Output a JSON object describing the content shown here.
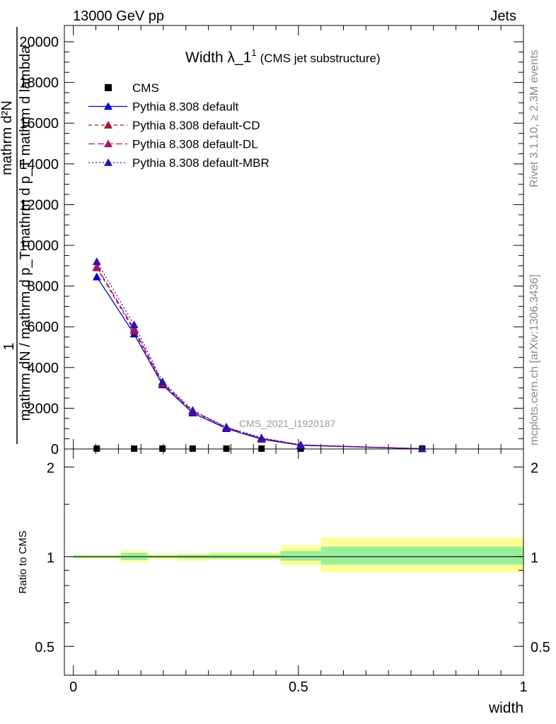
{
  "header": {
    "left": "13000 GeV pp",
    "right": "Jets"
  },
  "side": {
    "rivet": "Rivet 3.1.10, ≥ 2.3M events",
    "mcplots": "mcplots.cern.ch [arXiv:1306.3436]"
  },
  "chart_data": [
    {
      "type": "line",
      "title": "Width λ_1",
      "title_sup": "1",
      "title_suffix": "(CMS jet substructure)",
      "ylabel_main": "1",
      "ylabel_num": "mathrm d²N",
      "ylabel_den": "mathrm dN / mathrm d p_T mathrm d p_T mathrm d lambda",
      "watermark": "CMS_2021_I1920187",
      "xlim": [
        -0.02,
        1.0
      ],
      "ylim": [
        0,
        20800
      ],
      "yticks": [
        0,
        2000,
        4000,
        6000,
        8000,
        10000,
        12000,
        14000,
        16000,
        18000,
        20000
      ],
      "ytick_labels": [
        "0",
        "2000",
        "4000",
        "6000",
        "8000",
        "10000",
        "12000",
        "14000",
        "16000",
        "18000",
        "20000"
      ],
      "legend_position": "top-left",
      "x": [
        0.052,
        0.135,
        0.198,
        0.265,
        0.34,
        0.418,
        0.505,
        0.775
      ],
      "series": [
        {
          "name": "CMS",
          "color": "#000000",
          "marker": "square",
          "dash": "none",
          "values": [
            0,
            0,
            0,
            0,
            0,
            0,
            0,
            0
          ]
        },
        {
          "name": "Pythia 8.308 default",
          "color": "#0000cc",
          "marker": "triangle",
          "dash": "solid",
          "values": [
            8450,
            5650,
            3150,
            1770,
            1000,
            480,
            180,
            10
          ]
        },
        {
          "name": "Pythia 8.308 default-CD",
          "color": "#aa1133",
          "marker": "triangle",
          "dash": "5,4",
          "values": [
            8900,
            5800,
            3200,
            1850,
            1050,
            520,
            200,
            10
          ]
        },
        {
          "name": "Pythia 8.308 default-DL",
          "color": "#aa1166",
          "marker": "triangle",
          "dash": "9,4",
          "values": [
            8950,
            5900,
            3250,
            1870,
            1050,
            520,
            200,
            10
          ]
        },
        {
          "name": "Pythia 8.308 default-MBR",
          "color": "#3311aa",
          "marker": "triangle",
          "dash": "2,3",
          "values": [
            9200,
            6100,
            3300,
            1900,
            1080,
            550,
            200,
            10
          ]
        }
      ]
    },
    {
      "type": "area",
      "ylabel": "Ratio to CMS",
      "xlabel": "width",
      "xlim": [
        -0.02,
        1.0
      ],
      "ylim": [
        0.4,
        2.3
      ],
      "yscale": "log",
      "yticks": [
        0.5,
        1,
        2
      ],
      "ytick_labels": [
        "0.5",
        "1",
        "2"
      ],
      "xticks": [
        0,
        0.5,
        1
      ],
      "xtick_labels": [
        "0",
        "0.5",
        "1"
      ],
      "bins": [
        {
          "lo": 0.0,
          "hi": 0.105,
          "stat_lo": 0.99,
          "stat_hi": 1.01,
          "tot_lo": 0.985,
          "tot_hi": 1.015
        },
        {
          "lo": 0.105,
          "hi": 0.165,
          "stat_lo": 0.975,
          "stat_hi": 1.03,
          "tot_lo": 0.96,
          "tot_hi": 1.045
        },
        {
          "lo": 0.165,
          "hi": 0.23,
          "stat_lo": 0.99,
          "stat_hi": 1.01,
          "tot_lo": 0.98,
          "tot_hi": 1.02
        },
        {
          "lo": 0.23,
          "hi": 0.305,
          "stat_lo": 0.985,
          "stat_hi": 1.015,
          "tot_lo": 0.97,
          "tot_hi": 1.025
        },
        {
          "lo": 0.305,
          "hi": 0.385,
          "stat_lo": 0.985,
          "stat_hi": 1.02,
          "tot_lo": 0.975,
          "tot_hi": 1.035
        },
        {
          "lo": 0.385,
          "hi": 0.46,
          "stat_lo": 0.985,
          "stat_hi": 1.02,
          "tot_lo": 0.975,
          "tot_hi": 1.035
        },
        {
          "lo": 0.46,
          "hi": 0.55,
          "stat_lo": 0.97,
          "stat_hi": 1.045,
          "tot_lo": 0.935,
          "tot_hi": 1.09
        },
        {
          "lo": 0.55,
          "hi": 1.0,
          "stat_lo": 0.94,
          "stat_hi": 1.08,
          "tot_lo": 0.885,
          "tot_hi": 1.16
        }
      ],
      "stat_color": "#99ee99",
      "tot_color": "#ffff99",
      "reference_line": 1
    }
  ]
}
